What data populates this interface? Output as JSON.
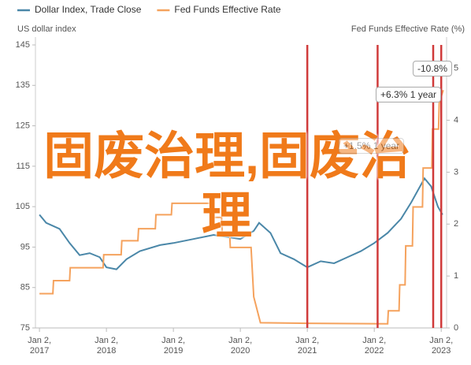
{
  "chart_data": {
    "type": "line",
    "legend": [
      {
        "name": "Dollar Index, Trade Close",
        "color": "#4a87a8"
      },
      {
        "name": "Fed Funds Effective Rate",
        "color": "#f5a25d"
      }
    ],
    "ylabel": "US dollar index",
    "y2label": "Fed Funds Effective Rate (%)",
    "xlim": [
      2016.94,
      2023.08
    ],
    "xticks": [
      {
        "value": 2017,
        "label": "Jan 2, 2017"
      },
      {
        "value": 2018,
        "label": "Jan 2, 2018"
      },
      {
        "value": 2019,
        "label": "Jan 2, 2019"
      },
      {
        "value": 2020,
        "label": "Jan 2, 2020"
      },
      {
        "value": 2021,
        "label": "Jan 2, 2021"
      },
      {
        "value": 2022,
        "label": "Jan 2, 2022"
      },
      {
        "value": 2023,
        "label": "Jan 2, 2023"
      }
    ],
    "ylim": [
      75,
      145
    ],
    "yticks": [
      145,
      135,
      125,
      115,
      105,
      95,
      85,
      75
    ],
    "y2lim": [
      0,
      5.45
    ],
    "y2ticks": [
      5,
      4,
      3,
      2,
      1,
      0
    ],
    "series": [
      {
        "name": "Dollar Index, Trade Close",
        "color": "#4a87a8",
        "x": [
          2017.0,
          2017.1,
          2017.3,
          2017.45,
          2017.6,
          2017.75,
          2017.9,
          2018.0,
          2018.15,
          2018.3,
          2018.5,
          2018.8,
          2019.0,
          2019.3,
          2019.6,
          2019.8,
          2020.0,
          2020.2,
          2020.28,
          2020.45,
          2020.6,
          2020.8,
          2021.0,
          2021.2,
          2021.4,
          2021.6,
          2021.8,
          2022.0,
          2022.2,
          2022.4,
          2022.55,
          2022.75,
          2022.85,
          2022.95,
          2023.02
        ],
        "values": [
          103,
          101,
          99.5,
          96,
          93,
          93.5,
          92.5,
          90,
          89.5,
          92,
          94,
          95.5,
          96,
          97,
          98,
          97.5,
          97,
          99,
          101,
          98.5,
          93.5,
          92,
          90,
          91.5,
          91,
          92.5,
          94,
          96,
          98.5,
          102,
          106,
          112,
          110,
          105,
          103
        ]
      },
      {
        "name": "Fed Funds Effective Rate",
        "color": "#f5a25d",
        "axis": "y2",
        "x": [
          2017.0,
          2017.2,
          2017.21,
          2017.45,
          2017.46,
          2017.95,
          2017.96,
          2018.22,
          2018.23,
          2018.47,
          2018.48,
          2018.73,
          2018.74,
          2018.97,
          2018.98,
          2019.58,
          2019.59,
          2019.72,
          2019.73,
          2019.84,
          2019.85,
          2020.16,
          2020.2,
          2020.3,
          2021.0,
          2022.2,
          2022.21,
          2022.37,
          2022.38,
          2022.46,
          2022.47,
          2022.57,
          2022.58,
          2022.72,
          2022.73,
          2022.86,
          2022.87,
          2022.96,
          2022.97,
          2023.03
        ],
        "values": [
          0.66,
          0.66,
          0.91,
          0.91,
          1.16,
          1.16,
          1.41,
          1.41,
          1.68,
          1.68,
          1.91,
          1.91,
          2.18,
          2.18,
          2.4,
          2.4,
          2.13,
          2.13,
          1.83,
          1.83,
          1.55,
          1.55,
          0.6,
          0.1,
          0.09,
          0.08,
          0.33,
          0.33,
          0.83,
          0.83,
          1.58,
          1.58,
          2.33,
          2.33,
          3.08,
          3.08,
          3.83,
          3.83,
          4.33,
          4.58
        ]
      }
    ],
    "vlines": [
      2021.0,
      2022.05,
      2022.88,
      2023.0
    ],
    "vline_color": "#d03a3a",
    "annotations": [
      "-10.8%",
      "+6.3% 1 year",
      "+1.5% 1 year"
    ],
    "watermark": "固废治理,固废治理"
  }
}
